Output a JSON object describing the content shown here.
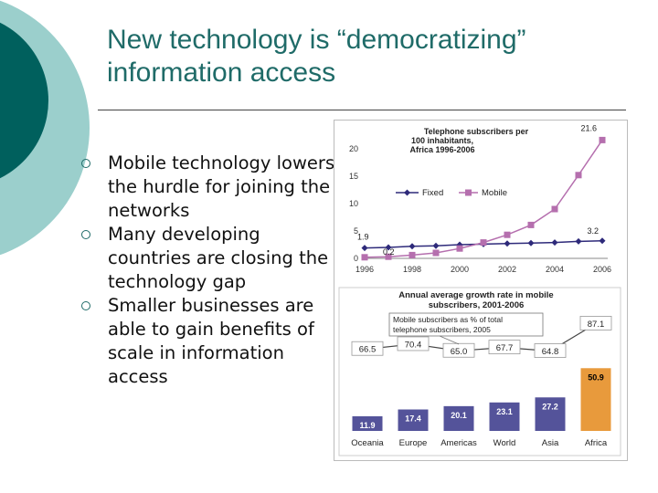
{
  "slide": {
    "title_line1": "New technology is “democratizing”",
    "title_line2": "information access",
    "bullets": [
      "Mobile technology lowers the hurdle for joining the networks",
      "Many developing countries are closing the technology gap",
      "Smaller businesses are able to gain benefits of scale in information access"
    ],
    "colors": {
      "title": "#1f6b68",
      "deco_dark": "#00605d",
      "deco_light": "#9bcfcc"
    }
  },
  "chart_data": [
    {
      "type": "line",
      "title_lines": [
        "Telephone subscribers per",
        "100 inhabitants,",
        "Africa 1996-2006"
      ],
      "x": [
        1996,
        1997,
        1998,
        1999,
        2000,
        2001,
        2002,
        2003,
        2004,
        2005,
        2006
      ],
      "x_tick_labels": [
        "1996",
        "1998",
        "2000",
        "2002",
        "2004",
        "2006"
      ],
      "x_ticks": [
        1996,
        1998,
        2000,
        2002,
        2004,
        2006
      ],
      "y_ticks": [
        0,
        5,
        10,
        15,
        20
      ],
      "ylim": [
        0,
        20
      ],
      "series": [
        {
          "name": "Fixed",
          "color": "#2e2a7a",
          "marker": "diamond",
          "values": [
            1.9,
            2.0,
            2.2,
            2.3,
            2.5,
            2.6,
            2.7,
            2.8,
            2.9,
            3.1,
            3.2
          ]
        },
        {
          "name": "Mobile",
          "color": "#b56fae",
          "marker": "square",
          "values": [
            0.2,
            0.3,
            0.6,
            1.0,
            1.8,
            2.9,
            4.3,
            6.1,
            9.0,
            15.2,
            21.6
          ]
        }
      ],
      "annotations": [
        {
          "text": "1.9",
          "x": 1996,
          "y": 1.9
        },
        {
          "text": "0.2",
          "x": 1997,
          "y": 0.2
        },
        {
          "text": "21.6",
          "x": 2006,
          "y": 21.6
        },
        {
          "text": "3.2",
          "x": 2006,
          "y": 3.2
        }
      ]
    },
    {
      "type": "bar",
      "title_lines": [
        "Annual average growth rate in mobile",
        "subscribers, 2001-2006"
      ],
      "categories": [
        "Oceania",
        "Europe",
        "Americas",
        "World",
        "Asia",
        "Africa"
      ],
      "values": [
        11.9,
        17.4,
        20.1,
        23.1,
        27.2,
        50.9
      ],
      "value_labels": [
        "11.9",
        "17.4",
        "20.1",
        "23.1",
        "27.2",
        "50.9"
      ],
      "bar_colors": [
        "#54539a",
        "#54539a",
        "#54539a",
        "#54539a",
        "#54539a",
        "#e89a3c"
      ],
      "ylim": [
        0,
        100
      ],
      "overlay_line": {
        "label_lines": [
          "Mobile subscribers as % of total",
          "telephone subscribers, 2005"
        ],
        "values": [
          66.5,
          70.4,
          65.0,
          67.7,
          64.8,
          87.1
        ],
        "value_labels": [
          "66.5",
          "70.4",
          "65.0",
          "67.7",
          "64.8",
          "87.1"
        ]
      }
    }
  ]
}
